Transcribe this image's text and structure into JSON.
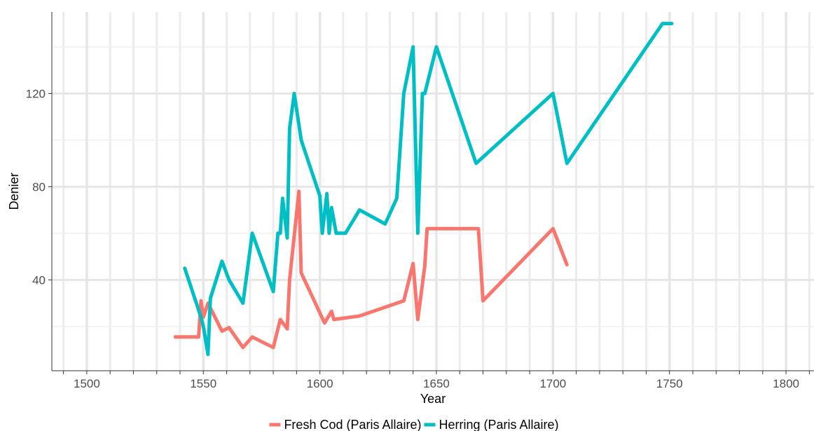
{
  "chart_data": {
    "type": "line",
    "title": "",
    "xlabel": "Year",
    "ylabel": "Denier",
    "xlim": [
      1485,
      1812
    ],
    "ylim": [
      1,
      155
    ],
    "x_ticks": [
      1500,
      1550,
      1600,
      1650,
      1700,
      1750,
      1800
    ],
    "y_ticks": [
      40,
      80,
      120
    ],
    "x_minor_step": 10,
    "y_minor_step": 20,
    "grid": true,
    "legend_position": "bottom",
    "series": [
      {
        "name": "Fresh Cod (Paris Allaire)",
        "color": "#F8766D",
        "points": [
          [
            1538,
            15.5
          ],
          [
            1548,
            15.5
          ],
          [
            1549,
            31
          ],
          [
            1550,
            24
          ],
          [
            1552,
            30
          ],
          [
            1558,
            18
          ],
          [
            1561,
            19.5
          ],
          [
            1567,
            11
          ],
          [
            1571,
            15.5
          ],
          [
            1580,
            11
          ],
          [
            1583,
            23
          ],
          [
            1586,
            19
          ],
          [
            1587,
            40
          ],
          [
            1591,
            78
          ],
          [
            1592,
            43
          ],
          [
            1602,
            21.5
          ],
          [
            1605,
            26.5
          ],
          [
            1606,
            23
          ],
          [
            1617,
            24.5
          ],
          [
            1636,
            31
          ],
          [
            1640,
            47
          ],
          [
            1642,
            23
          ],
          [
            1645,
            46
          ],
          [
            1646,
            62
          ],
          [
            1668,
            62
          ],
          [
            1670,
            31
          ],
          [
            1700,
            62
          ],
          [
            1706,
            46.5
          ]
        ]
      },
      {
        "name": "Herring (Paris Allaire)",
        "color": "#00BFC4",
        "points": [
          [
            1542,
            45
          ],
          [
            1549,
            24
          ],
          [
            1550,
            20
          ],
          [
            1552,
            8
          ],
          [
            1553,
            32
          ],
          [
            1558,
            48
          ],
          [
            1561,
            40
          ],
          [
            1567,
            30
          ],
          [
            1571,
            60
          ],
          [
            1580,
            35
          ],
          [
            1582,
            60
          ],
          [
            1583,
            60
          ],
          [
            1584,
            75
          ],
          [
            1586,
            58
          ],
          [
            1587,
            105
          ],
          [
            1589,
            120
          ],
          [
            1592,
            100
          ],
          [
            1600,
            76
          ],
          [
            1601,
            60
          ],
          [
            1603,
            77
          ],
          [
            1604,
            60
          ],
          [
            1605,
            71
          ],
          [
            1607,
            60
          ],
          [
            1611,
            60
          ],
          [
            1617,
            70
          ],
          [
            1628,
            64
          ],
          [
            1633,
            75
          ],
          [
            1636,
            120
          ],
          [
            1640,
            140
          ],
          [
            1642,
            60
          ],
          [
            1644,
            120
          ],
          [
            1645,
            120
          ],
          [
            1650,
            140
          ],
          [
            1667,
            90
          ],
          [
            1700,
            120
          ],
          [
            1706,
            90
          ],
          [
            1747,
            150
          ],
          [
            1751,
            150
          ]
        ]
      }
    ]
  }
}
